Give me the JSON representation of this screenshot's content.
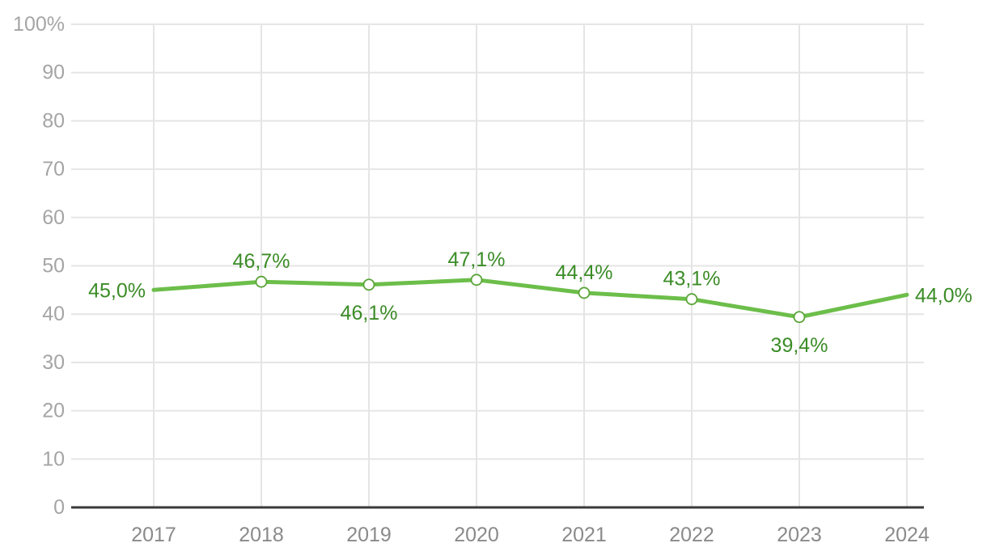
{
  "chart_data": {
    "type": "line",
    "title": "",
    "xlabel": "",
    "ylabel": "",
    "categories": [
      "2017",
      "2018",
      "2019",
      "2020",
      "2021",
      "2022",
      "2023",
      "2024"
    ],
    "values": [
      45.0,
      46.7,
      46.1,
      47.1,
      44.4,
      43.1,
      39.4,
      44.0
    ],
    "value_labels": [
      "45,0%",
      "46,7%",
      "46,1%",
      "47,1%",
      "44,4%",
      "43,1%",
      "39,4%",
      "44,0%"
    ],
    "label_placement": [
      "left",
      "above",
      "below",
      "above",
      "above",
      "above",
      "below",
      "right"
    ],
    "ylim": [
      0,
      100
    ],
    "y_tick_step": 10,
    "y_tick_labels": [
      "0",
      "10",
      "20",
      "30",
      "40",
      "50",
      "60",
      "70",
      "80",
      "90",
      "100%"
    ],
    "grid": true,
    "legend_position": "none",
    "marker_style": "open-circle-on-interior-points",
    "decimal_separator": ",",
    "colors": {
      "line": "#6cbe4a",
      "marker_stroke": "#5aa438",
      "marker_fill": "#ffffff",
      "value_label_text": "#3b8c27",
      "grid_line": "#e5e5e5",
      "axis_line": "#3a3a3a",
      "y_tick_text": "#a5a5a5",
      "x_tick_text": "#8a8a8a"
    }
  }
}
